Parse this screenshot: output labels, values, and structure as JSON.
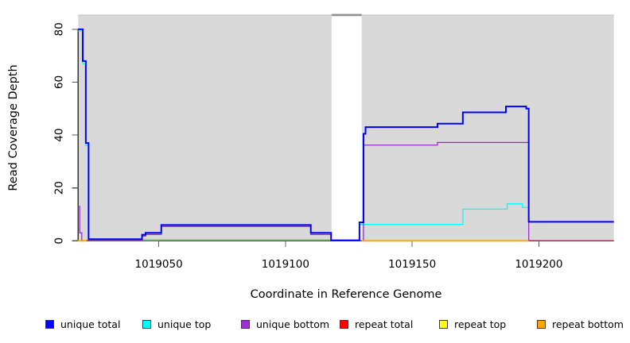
{
  "chart_data": {
    "type": "line",
    "title": "",
    "xlabel": "Coordinate in Reference Genome",
    "ylabel": "Read Coverage Depth",
    "x_ticks": [
      1019050,
      1019100,
      1019150,
      1019200
    ],
    "y_ticks": [
      0,
      20,
      40,
      60,
      80
    ],
    "x_range": [
      1019018.2,
      1019229.6
    ],
    "y_range": [
      0,
      85.4
    ],
    "grid": false,
    "legend_position": "bottom",
    "plot_background": "#d9d9d9",
    "plot_top_edge_color": "#c9c9c9",
    "no_data_gap": {
      "x_start": 1019118.2,
      "x_end": 1019130.1,
      "fill": "#ffffff",
      "cap_color": "#8f8f8f"
    },
    "series": [
      {
        "name": "repeat-top",
        "label": "repeat top",
        "color": "#ffff00",
        "width": 1.2,
        "runs": [
          [
            [
              1019018.2,
              0.25
            ],
            [
              1019118,
              0.25
            ]
          ]
        ]
      },
      {
        "name": "unique-top",
        "label": "unique top",
        "color": "#00ffff",
        "width": 1.3,
        "runs": [
          [
            [
              1019018.2,
              79.3
            ],
            [
              1019020,
              67
            ],
            [
              1019021.2,
              36
            ],
            [
              1019022.3,
              0.45
            ],
            [
              1019118,
              0.1
            ],
            [
              1019129.2,
              6.2
            ],
            [
              1019170,
              12
            ],
            [
              1019187.5,
              14
            ],
            [
              1019193.5,
              12.6
            ],
            [
              1019196,
              7.2
            ],
            [
              1019229.6,
              7.2
            ]
          ]
        ]
      },
      {
        "name": "unique-bottom",
        "label": "unique bottom",
        "color": "#9932cc",
        "width": 1.3,
        "runs": [
          [
            [
              1019018.2,
              13
            ],
            [
              1019018.8,
              3
            ],
            [
              1019019.6,
              0.1
            ],
            [
              1019043.4,
              1.8
            ],
            [
              1019044.8,
              2.4
            ],
            [
              1019051,
              5.4
            ],
            [
              1019110,
              2.4
            ],
            [
              1019118,
              0
            ],
            [
              1019130.8,
              36.2
            ],
            [
              1019160,
              37.2
            ],
            [
              1019196,
              0
            ],
            [
              1019229.6,
              0
            ]
          ]
        ]
      },
      {
        "name": "repeat-total",
        "label": "repeat total",
        "color": "#ff0000",
        "width": 1.2,
        "runs": [
          [
            [
              1019018.2,
              0
            ],
            [
              1019229.6,
              0
            ]
          ]
        ]
      },
      {
        "name": "repeat-bottom",
        "label": "repeat bottom",
        "color": "#ffa500",
        "width": 1.8,
        "runs": [
          [
            [
              1019018.2,
              0
            ],
            [
              1019021.5,
              0
            ]
          ],
          [
            [
              1019130.1,
              0
            ],
            [
              1019196,
              0
            ]
          ]
        ]
      },
      {
        "name": "unique-total",
        "label": "unique total",
        "color": "#0000ff",
        "width": 2,
        "runs": [
          [
            [
              1019018.2,
              80
            ],
            [
              1019020,
              68
            ],
            [
              1019021.2,
              37
            ],
            [
              1019022.3,
              0.6
            ],
            [
              1019043.4,
              2.3
            ],
            [
              1019044.8,
              3
            ],
            [
              1019051,
              6
            ],
            [
              1019110,
              3
            ],
            [
              1019118,
              0.2
            ],
            [
              1019129.2,
              7
            ],
            [
              1019130.8,
              40.5
            ],
            [
              1019131.6,
              43
            ],
            [
              1019160,
              44.3
            ],
            [
              1019170,
              48.6
            ],
            [
              1019187,
              50.8
            ],
            [
              1019195,
              50
            ],
            [
              1019196,
              7.2
            ],
            [
              1019229.6,
              7.2
            ]
          ]
        ]
      }
    ],
    "legend": [
      {
        "label": "unique total",
        "color": "#0000ff"
      },
      {
        "label": "unique top",
        "color": "#00ffff"
      },
      {
        "label": "unique bottom",
        "color": "#9932cc"
      },
      {
        "label": "repeat total",
        "color": "#ff0000"
      },
      {
        "label": "repeat top",
        "color": "#ffff00"
      },
      {
        "label": "repeat bottom",
        "color": "#ffa500"
      }
    ]
  }
}
